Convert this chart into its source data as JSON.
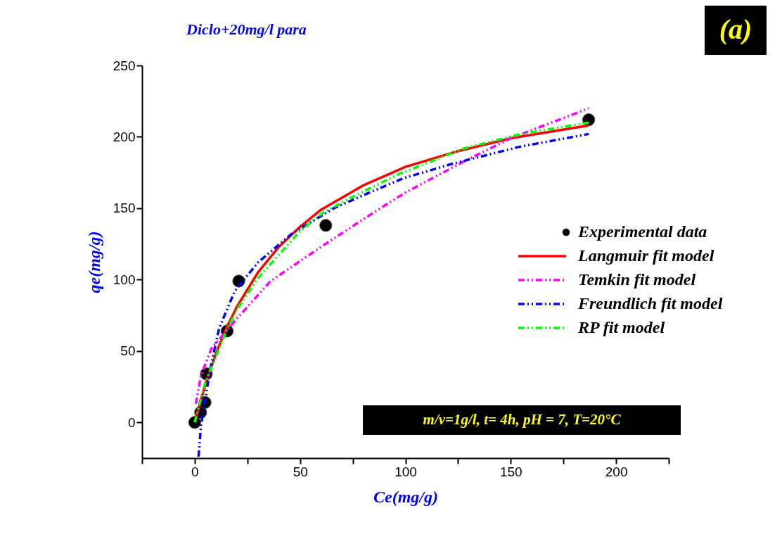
{
  "chart_data": {
    "type": "line",
    "title": "Diclo+20mg/l para",
    "xlabel": "Ce(mg/g)",
    "ylabel": "qe(mg/g)",
    "xlim": [
      -25,
      225
    ],
    "ylim": [
      -25,
      250
    ],
    "xticks": [
      {
        "value": -25,
        "label": null
      },
      0,
      {
        "value": 25,
        "label": null
      },
      50,
      {
        "value": 75,
        "label": null
      },
      100,
      {
        "value": 125,
        "label": null
      },
      150,
      {
        "value": 175,
        "label": null
      },
      200,
      {
        "value": 225,
        "label": null
      }
    ],
    "yticks": [
      0,
      50,
      100,
      150,
      200,
      250
    ],
    "grid": false,
    "legend": "right",
    "annotations": [
      "(a)",
      "m/v=1g/l, t= 4h, pH = 7, T=20°C"
    ],
    "series": [
      {
        "name": "Experimental data",
        "type": "scatter",
        "marker": "circle",
        "color": "#000000",
        "x": [
          0,
          2.8,
          4.9,
          5.5,
          15.4,
          20.9,
          62.2,
          187
        ],
        "values": [
          0,
          7,
          14,
          34,
          64,
          99,
          138,
          212
        ]
      },
      {
        "name": "Langmuir fit model",
        "color": "#ff0000",
        "line_style": "solid",
        "x": [
          0,
          2,
          5,
          10,
          15,
          20,
          30,
          40,
          50,
          60,
          80,
          100,
          125,
          150,
          187
        ],
        "values": [
          0,
          11,
          26,
          48,
          66,
          81,
          105,
          123,
          137,
          149,
          166,
          179,
          190,
          199,
          208
        ]
      },
      {
        "name": "Temkin fit model",
        "color": "#ff00ff",
        "line_style": "dashed",
        "x": [
          0.5,
          3,
          8,
          19,
          36,
          61,
          86,
          100,
          128,
          150,
          187
        ],
        "values": [
          13,
          33,
          52,
          71,
          99,
          124,
          148,
          161,
          183,
          199,
          220
        ]
      },
      {
        "name": "Freundlich fit model",
        "color": "#0000ff",
        "line_style": "dashed",
        "x": [
          1.8,
          3,
          7.3,
          11.6,
          19,
          30,
          46,
          66,
          83,
          99,
          122,
          154,
          187
        ],
        "values": [
          -24,
          -2,
          37,
          66,
          92,
          112,
          132,
          150,
          161,
          171,
          181,
          193,
          202
        ]
      },
      {
        "name": "RP fit model",
        "color": "#00ff00",
        "line_style": "dashed",
        "x": [
          0,
          5,
          15,
          20,
          30,
          50,
          61,
          79,
          97,
          128,
          155,
          187
        ],
        "values": [
          0,
          28,
          64,
          79,
          101,
          134,
          147,
          161,
          174,
          192,
          202,
          210
        ]
      }
    ]
  }
}
